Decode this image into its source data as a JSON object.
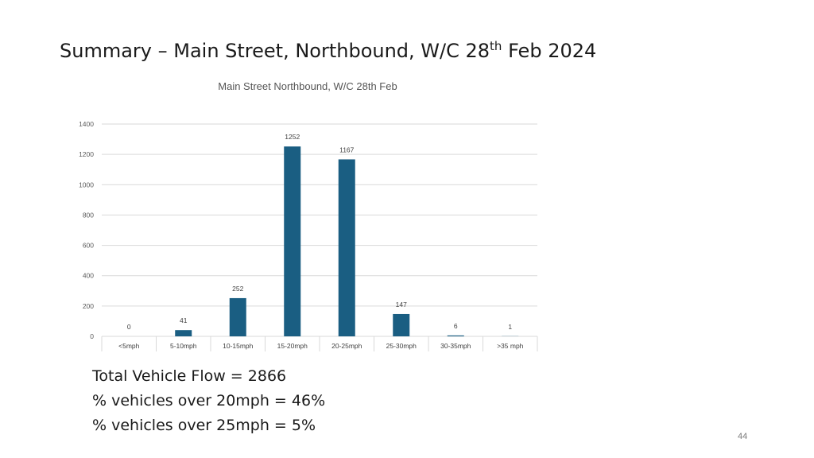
{
  "slide": {
    "title_main": "Summary – Main Street, Northbound, W/C 28",
    "title_sup": "th",
    "title_end": " Feb 2024",
    "page_number": "44"
  },
  "summary": {
    "line1": "Total Vehicle Flow = 2866",
    "line2": "% vehicles over 20mph = 46%",
    "line3": "% vehicles over 25mph = 5%"
  },
  "chart_data": {
    "type": "bar",
    "title": "Main Street Northbound, W/C 28th Feb",
    "categories": [
      "<5mph",
      "5-10mph",
      "10-15mph",
      "15-20mph",
      "20-25mph",
      "25-30mph",
      "30-35mph",
      ">35 mph"
    ],
    "values": [
      0,
      41,
      252,
      1252,
      1167,
      147,
      6,
      1
    ],
    "ylim": [
      0,
      1400
    ],
    "yticks": [
      0,
      200,
      400,
      600,
      800,
      1000,
      1200,
      1400
    ],
    "grid": true,
    "bar_color": "#1a5e82",
    "data_labels": true
  }
}
